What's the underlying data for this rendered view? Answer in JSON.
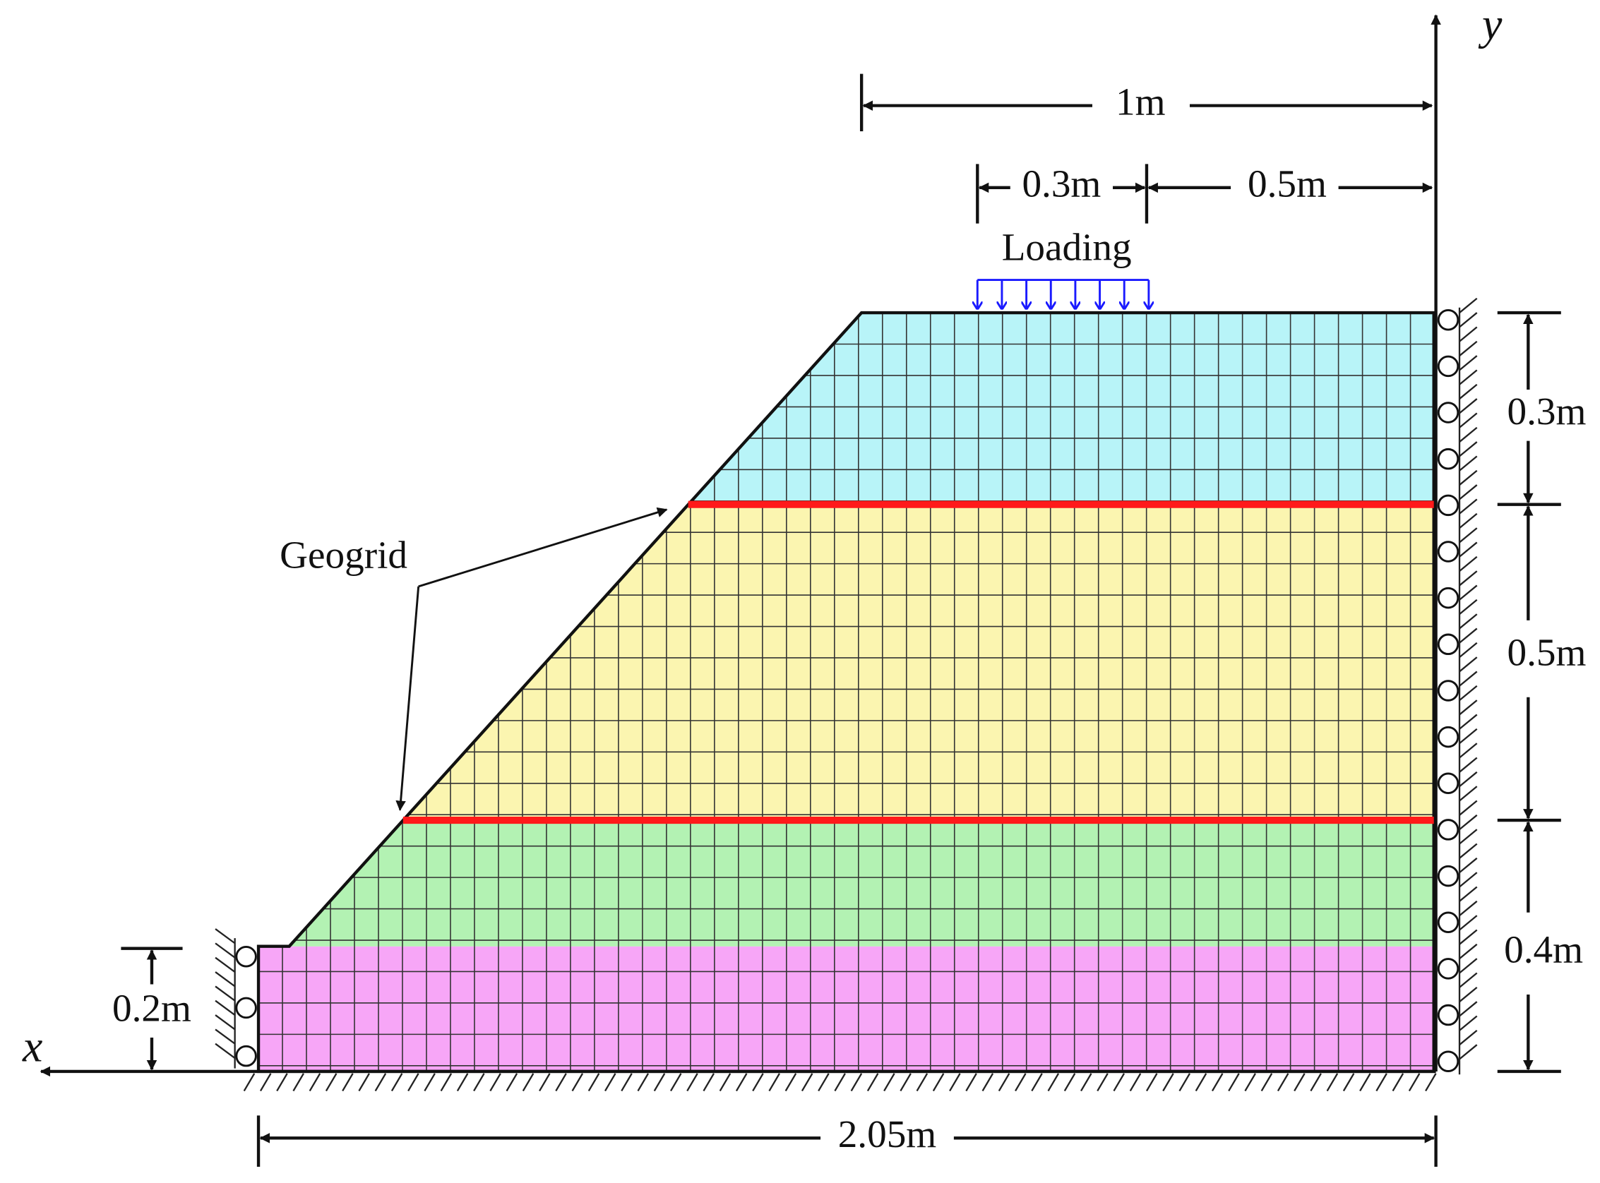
{
  "axes": {
    "x": "x",
    "y": "y"
  },
  "dimensions": {
    "top_width": "1m",
    "load_width": "0.3m",
    "load_offset": "0.5m",
    "layer_top": "0.3m",
    "layer_middle": "0.5m",
    "layer_bottom": "0.4m",
    "foundation": "0.2m",
    "base_width": "2.05m"
  },
  "labels": {
    "loading": "Loading",
    "geogrid": "Geogrid"
  }
}
